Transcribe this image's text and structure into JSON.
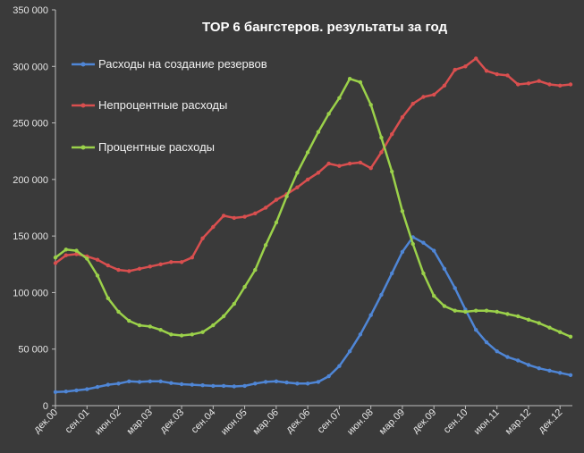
{
  "chart_data": {
    "type": "line",
    "title": "TOP 6 бангстеров. результаты за год",
    "xlabel": "",
    "ylabel": "",
    "ylim": [
      0,
      350000
    ],
    "yticks": [
      0,
      50000,
      100000,
      150000,
      200000,
      250000,
      300000,
      350000
    ],
    "ytick_labels": [
      "0",
      "50 000",
      "100 000",
      "150 000",
      "200 000",
      "250 000",
      "300 000",
      "350 000"
    ],
    "x_tick_labels": [
      "дек.00",
      "сен.01",
      "июн.02",
      "мар.03",
      "дек.03",
      "сен.04",
      "июн.05",
      "мар.06",
      "дек.06",
      "сен.07",
      "июн.08",
      "мар.09",
      "дек.09",
      "сен.10",
      "июн.11",
      "мар.12",
      "дек.12"
    ],
    "x_start": "дек.00",
    "x_frequency": "quarterly",
    "grid": false,
    "legend_position": "top-left",
    "background": "#3a3a3a",
    "series": [
      {
        "name": "Расходы на создание резервов",
        "color": "#4f86d6",
        "values": [
          12000,
          12500,
          13500,
          14500,
          16500,
          18500,
          19500,
          21500,
          21000,
          21500,
          21500,
          20000,
          19000,
          18500,
          18000,
          17500,
          17500,
          17000,
          17500,
          19500,
          21000,
          21500,
          20500,
          19500,
          19500,
          21000,
          26000,
          35000,
          48000,
          63000,
          80000,
          98000,
          117000,
          136000,
          149000,
          144000,
          137000,
          121000,
          104000,
          85000,
          67000,
          56000,
          48000,
          43000,
          40000,
          36000,
          33000,
          31000,
          29000,
          27000
        ]
      },
      {
        "name": "Непроцентные расходы",
        "color": "#d94f4f",
        "values": [
          126000,
          133000,
          134000,
          132000,
          129000,
          124000,
          120000,
          119000,
          121000,
          123000,
          125000,
          127000,
          127000,
          131000,
          148000,
          158000,
          168000,
          166000,
          167000,
          170000,
          175000,
          182000,
          187000,
          193000,
          200000,
          206000,
          214000,
          212000,
          214000,
          215000,
          210000,
          224000,
          240000,
          255000,
          267000,
          273000,
          275000,
          283000,
          297000,
          300000,
          307000,
          296000,
          293000,
          292000,
          284000,
          285000,
          287000,
          284000,
          283000,
          284000
        ]
      },
      {
        "name": "Процентные расходы",
        "color": "#9bd14a",
        "values": [
          131000,
          138000,
          137000,
          130000,
          115000,
          95000,
          83000,
          75000,
          71000,
          70000,
          67000,
          63000,
          62000,
          63000,
          65000,
          71000,
          79000,
          90000,
          105000,
          120000,
          142000,
          162000,
          185000,
          206000,
          224000,
          242000,
          258000,
          272000,
          289000,
          286000,
          266000,
          237000,
          207000,
          172000,
          143000,
          117000,
          97000,
          88000,
          84000,
          83000,
          84000,
          84000,
          83000,
          81000,
          79000,
          76000,
          73000,
          69000,
          65000,
          61000
        ]
      }
    ]
  }
}
